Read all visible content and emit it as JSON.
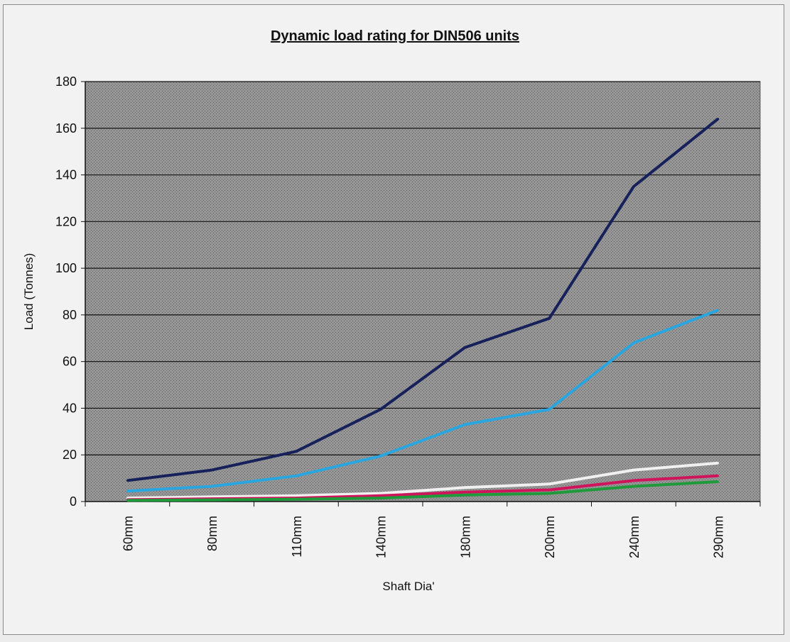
{
  "chart_data": {
    "type": "line",
    "title": "Dynamic load rating for DIN506 units",
    "xlabel": "Shaft Dia'",
    "ylabel": "Load (Tonnes)",
    "categories": [
      "60mm",
      "80mm",
      "110mm",
      "140mm",
      "180mm",
      "200mm",
      "240mm",
      "290mm"
    ],
    "ylim": [
      0,
      180
    ],
    "ytick_step": 20,
    "yticks": [
      "0",
      "20",
      "40",
      "60",
      "80",
      "100",
      "120",
      "140",
      "160",
      "180"
    ],
    "grid": true,
    "legend": "none",
    "plot_background": "#8e8e8e",
    "series": [
      {
        "color": "#16205a",
        "values": [
          9,
          13.5,
          21.5,
          39.5,
          66,
          78.5,
          135,
          164
        ]
      },
      {
        "color": "#29a6e0",
        "values": [
          4.5,
          6.5,
          11,
          19.5,
          33,
          39.5,
          68,
          82
        ]
      },
      {
        "color": "#f0f0f0",
        "values": [
          1.5,
          2,
          2.5,
          3.5,
          6,
          7.5,
          13.5,
          16.5
        ]
      },
      {
        "color": "#d0145c",
        "values": [
          0.8,
          1.2,
          1.5,
          2.5,
          4,
          5,
          9,
          11
        ]
      },
      {
        "color": "#1e9a3a",
        "values": [
          0.5,
          0.7,
          1,
          1.5,
          2.8,
          3.5,
          6.5,
          8.5
        ]
      }
    ]
  }
}
